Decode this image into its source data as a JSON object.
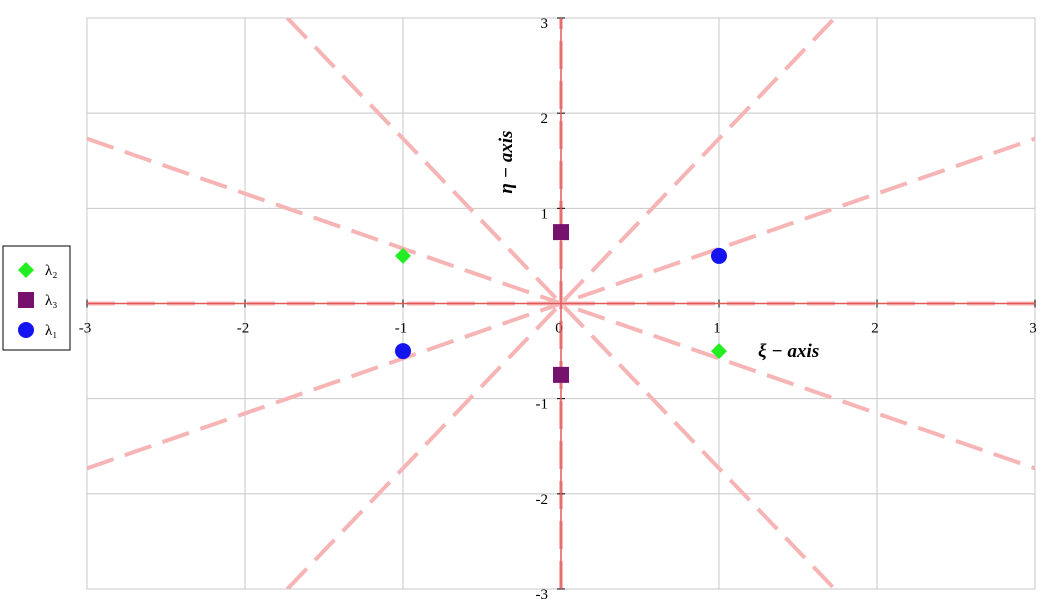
{
  "chart_data": {
    "type": "scatter",
    "x_label": "ξ − axis",
    "y_label": "η − axis",
    "xlim": [
      -3,
      3
    ],
    "ylim": [
      -3,
      3
    ],
    "xticks": [
      -3,
      -2,
      -1,
      0,
      1,
      2,
      3
    ],
    "yticks": [
      -3,
      -2,
      -1,
      1,
      2,
      3
    ],
    "grid": true,
    "legend": "left",
    "reference_lines": {
      "color": "#f6b4b4",
      "lines": [
        {
          "x": [
            -3,
            3
          ],
          "y": [
            0,
            0
          ]
        },
        {
          "x": [
            0,
            0
          ],
          "y": [
            -3,
            3
          ]
        },
        {
          "x": [
            -3,
            3
          ],
          "y": [
            -1.732,
            1.732
          ]
        },
        {
          "x": [
            -3,
            3
          ],
          "y": [
            1.732,
            -1.732
          ]
        },
        {
          "x": [
            -1.732,
            1.732
          ],
          "y": [
            -3,
            3
          ]
        },
        {
          "x": [
            -1.732,
            1.732
          ],
          "y": [
            3,
            -3
          ]
        }
      ]
    },
    "series": [
      {
        "name": "λ₂",
        "color": "#22ee22",
        "marker": "diamond",
        "x": [
          -1,
          1
        ],
        "values": [
          0.5,
          -0.5
        ]
      },
      {
        "name": "λ₃",
        "color": "#77116e",
        "marker": "square",
        "x": [
          0,
          0
        ],
        "values": [
          0.75,
          -0.75
        ]
      },
      {
        "name": "λ₁",
        "color": "#1414f0",
        "marker": "circle",
        "x": [
          1,
          -1
        ],
        "values": [
          0.5,
          -0.5
        ]
      }
    ]
  }
}
